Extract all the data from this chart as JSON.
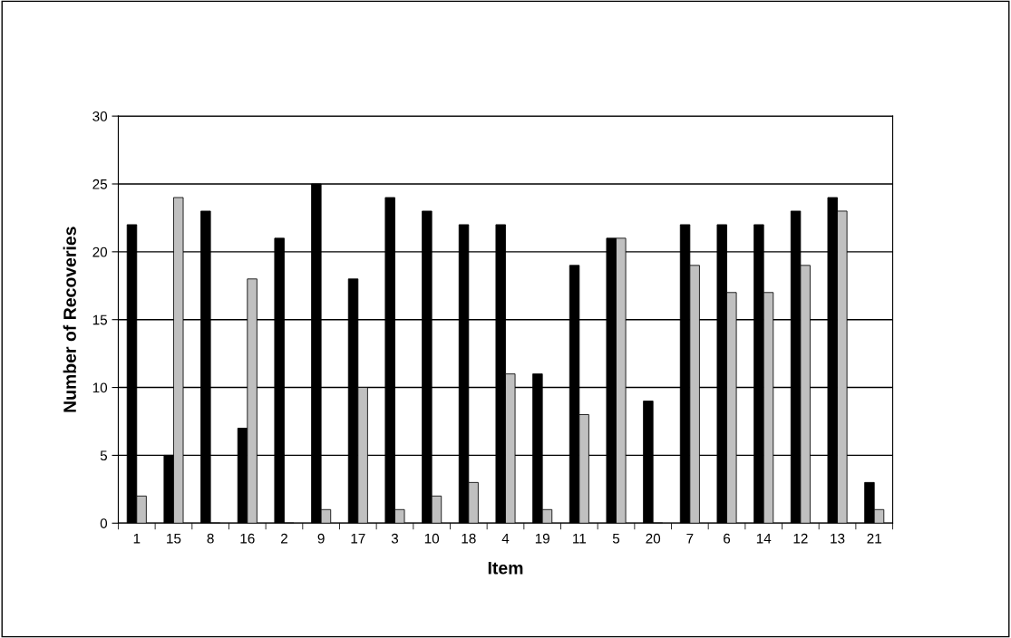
{
  "chart_data": {
    "type": "bar",
    "xlabel": "Item",
    "ylabel": "Number of Recoveries",
    "categories": [
      "1",
      "15",
      "8",
      "16",
      "2",
      "9",
      "17",
      "3",
      "10",
      "18",
      "4",
      "19",
      "11",
      "5",
      "20",
      "7",
      "6",
      "14",
      "12",
      "13",
      "21"
    ],
    "series": [
      {
        "color": "#000000",
        "values": [
          22,
          5,
          23,
          7,
          21,
          25,
          18,
          24,
          23,
          22,
          22,
          11,
          19,
          21,
          9,
          22,
          22,
          22,
          23,
          24,
          3
        ]
      },
      {
        "color": "#c0c0c0",
        "values": [
          2,
          24,
          0,
          18,
          0,
          1,
          10,
          1,
          2,
          3,
          11,
          1,
          8,
          21,
          0,
          19,
          17,
          17,
          19,
          23,
          1
        ]
      }
    ],
    "ylim": [
      0,
      30
    ],
    "yticks": [
      0,
      5,
      10,
      15,
      20,
      25,
      30
    ],
    "grid": "y"
  }
}
